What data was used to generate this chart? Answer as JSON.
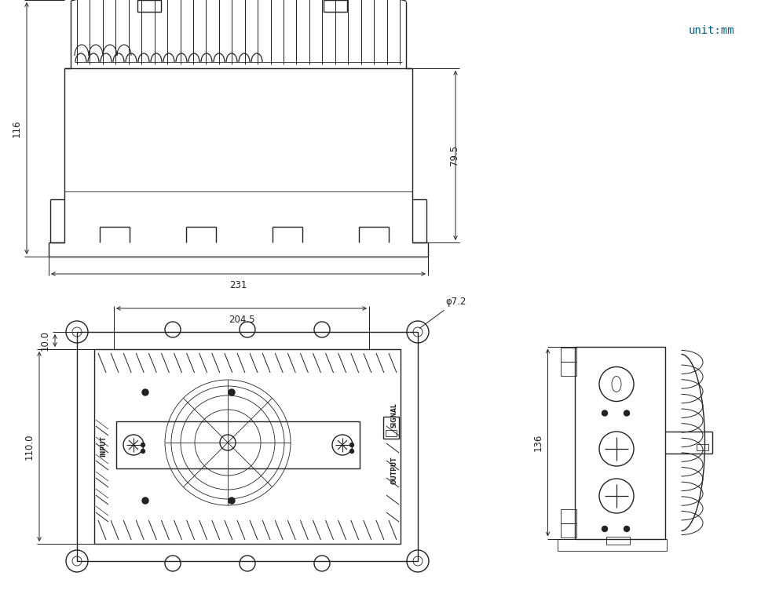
{
  "bg_color": "#ffffff",
  "line_color": "#222222",
  "dim_color": "#222222",
  "unit_text": "unit:mm",
  "unit_color": "#005f7f",
  "dim_116": "116",
  "dim_231": "231",
  "dim_79_5": "79.5",
  "dim_204_5": "204.5",
  "dim_10": "10.0",
  "dim_110": "110.0",
  "dim_phi72": "φ7.2",
  "dim_136": "136",
  "label_input": "INPUT",
  "label_output": "OUTPUT",
  "label_signal": "SIGNAL"
}
